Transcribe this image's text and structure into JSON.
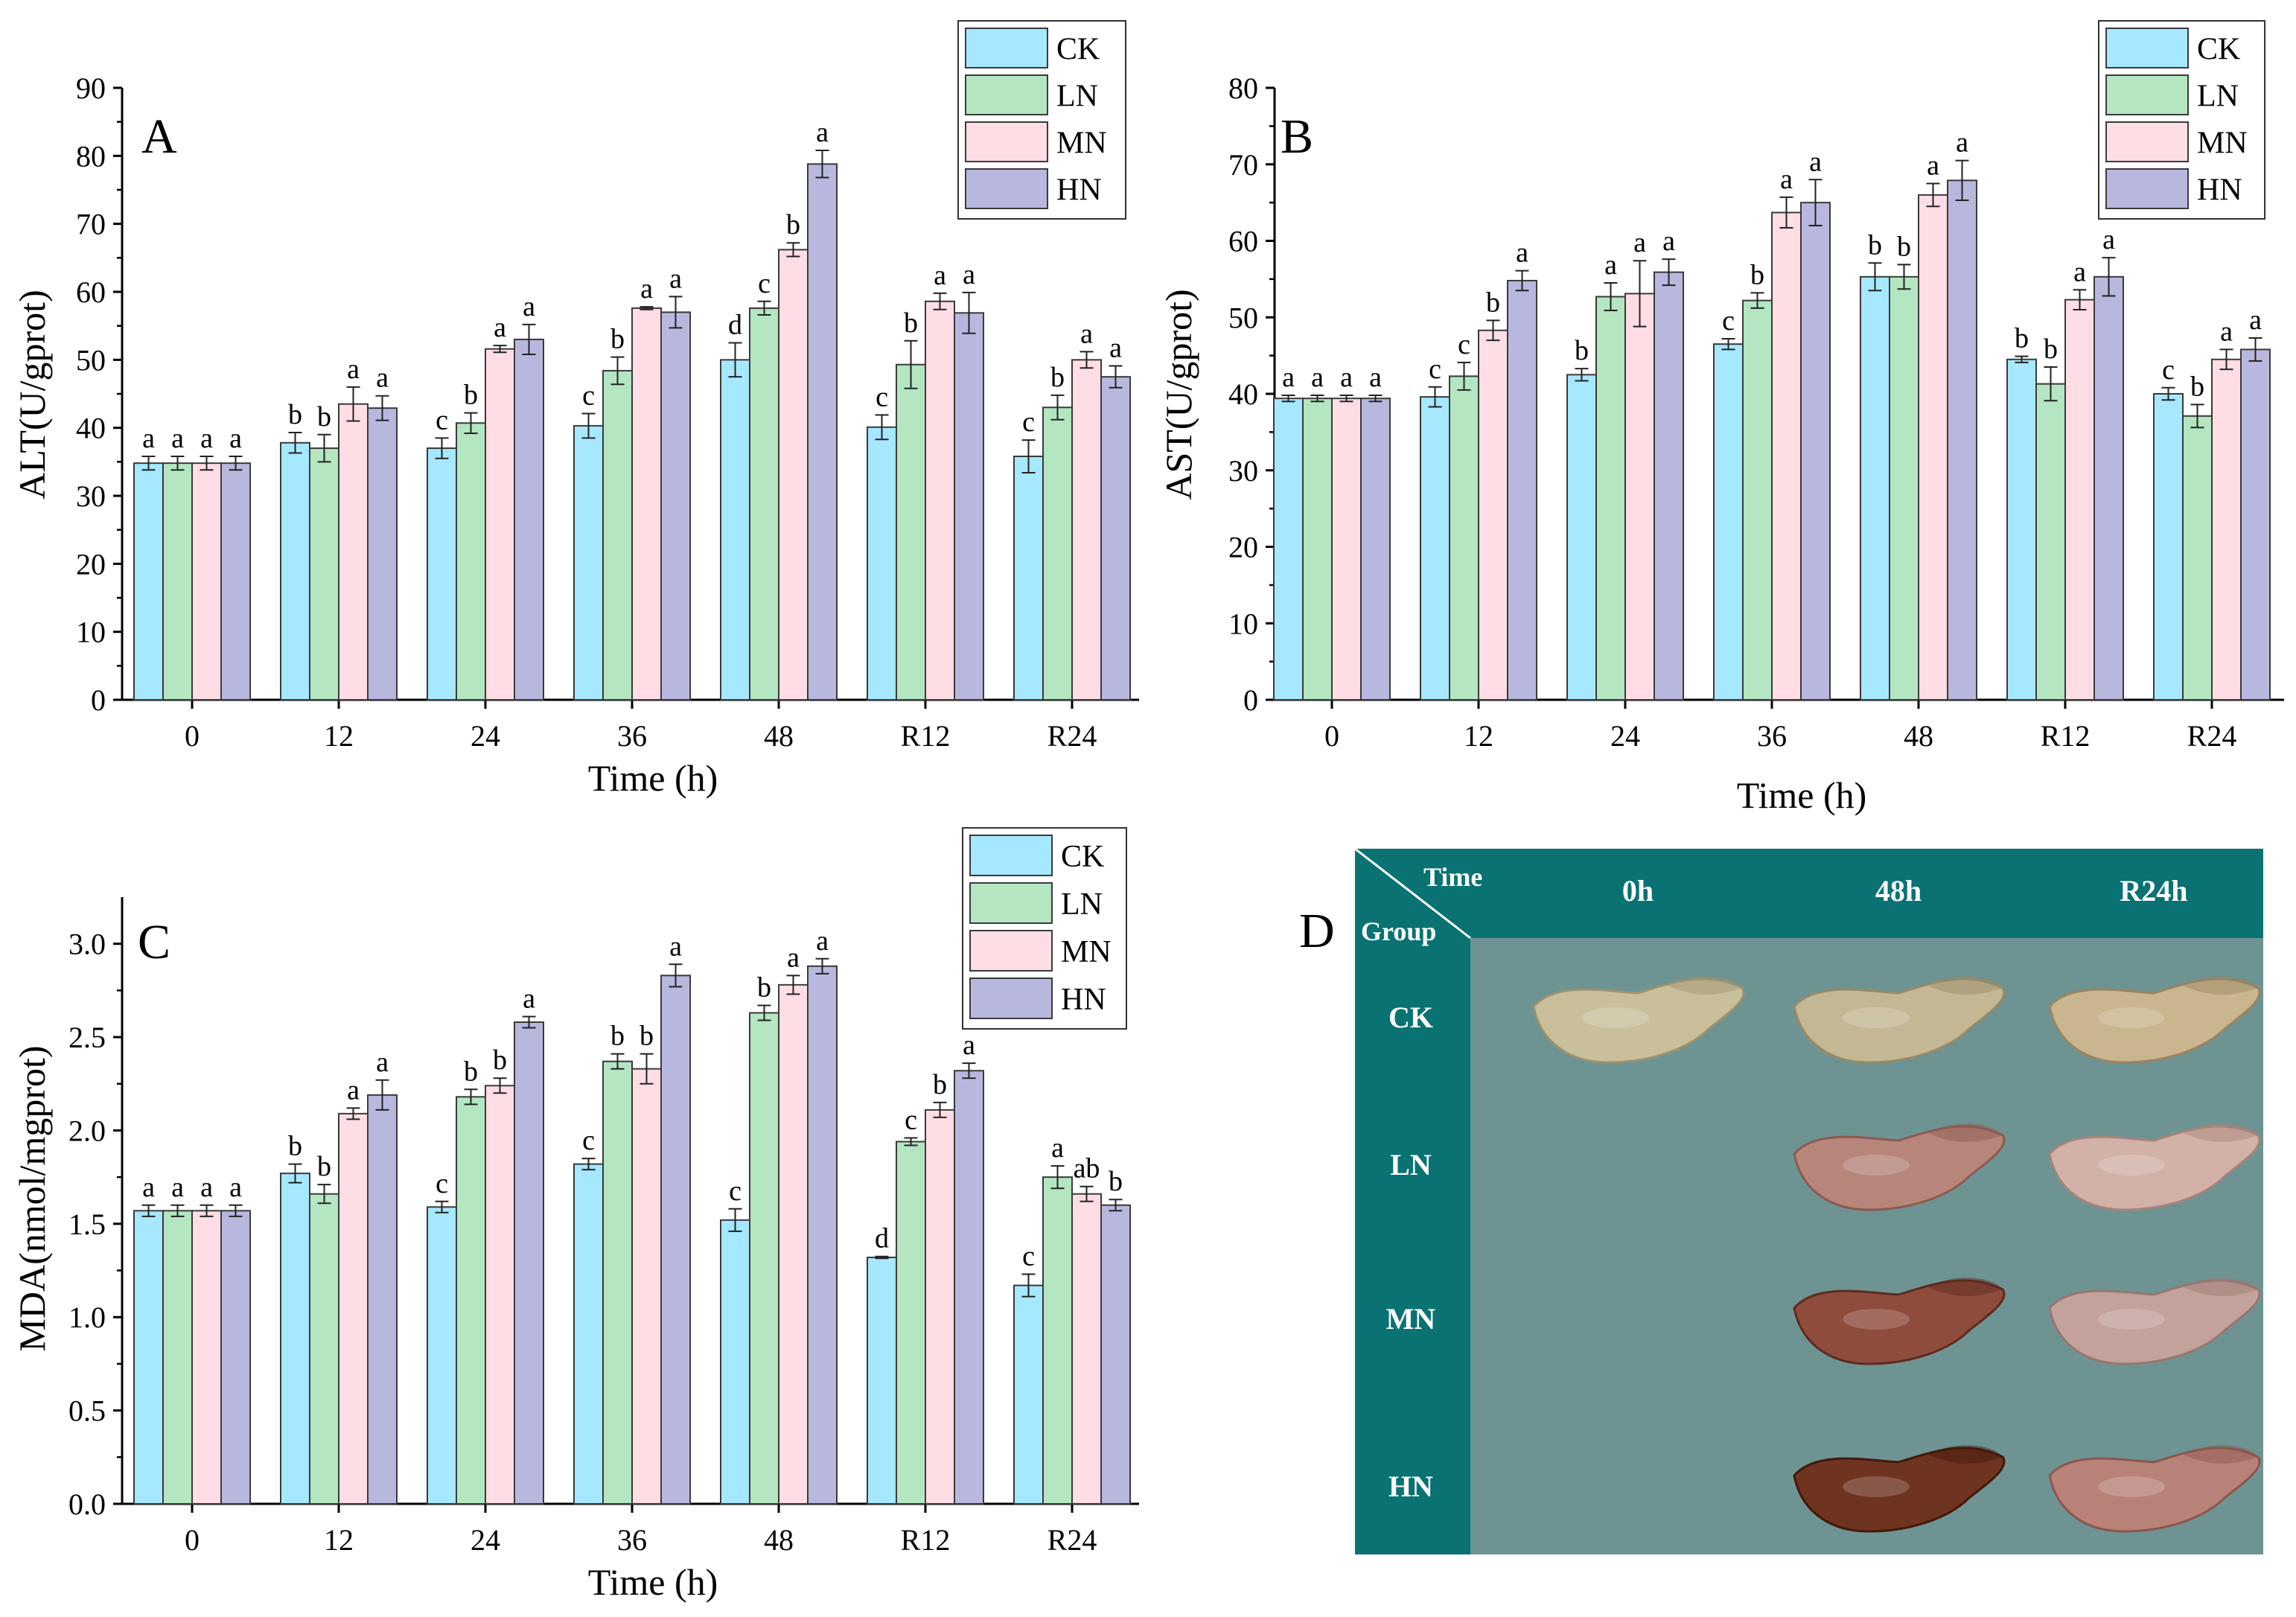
{
  "colors": {
    "CK": "#a6e8ff",
    "LN": "#b3e6c1",
    "MN": "#ffdde4",
    "HN": "#b8b8df",
    "teal": "#0a7272",
    "photo_bg": "#6e9393"
  },
  "legend": [
    "CK",
    "LN",
    "MN",
    "HN"
  ],
  "chart_data": [
    {
      "panel": "A",
      "type": "bar",
      "title": "A",
      "xlabel": "Time (h)",
      "ylabel": "ALT(U/gprot)",
      "categories": [
        "0",
        "12",
        "24",
        "36",
        "48",
        "R12",
        "R24"
      ],
      "ylim": [
        0,
        90
      ],
      "yticks": [
        "0",
        "10",
        "20",
        "30",
        "40",
        "50",
        "60",
        "70",
        "80",
        "90"
      ],
      "ystep": 10,
      "series": [
        {
          "name": "CK",
          "values": [
            34.8,
            37.8,
            37.0,
            40.3,
            50.0,
            40.1,
            35.8
          ],
          "errors": [
            1.0,
            1.5,
            1.5,
            1.8,
            2.5,
            1.8,
            2.4
          ],
          "labels": [
            "a",
            "b",
            "c",
            "c",
            "d",
            "c",
            "c"
          ]
        },
        {
          "name": "LN",
          "values": [
            34.8,
            37.0,
            40.7,
            48.4,
            57.6,
            49.3,
            43.0
          ],
          "errors": [
            1.0,
            2.0,
            1.5,
            2.0,
            1.0,
            3.5,
            1.8
          ],
          "labels": [
            "a",
            "b",
            "b",
            "b",
            "c",
            "b",
            "b"
          ]
        },
        {
          "name": "MN",
          "values": [
            34.8,
            43.5,
            51.6,
            57.6,
            66.2,
            58.6,
            50.0
          ],
          "errors": [
            1.0,
            2.5,
            0.5,
            0.2,
            1.0,
            1.2,
            1.2
          ],
          "labels": [
            "a",
            "a",
            "a",
            "a",
            "b",
            "a",
            "a"
          ]
        },
        {
          "name": "HN",
          "values": [
            34.8,
            42.9,
            53.0,
            57.0,
            78.8,
            56.9,
            47.5
          ],
          "errors": [
            1.0,
            1.8,
            2.2,
            2.3,
            2.0,
            3.0,
            1.6
          ],
          "labels": [
            "a",
            "a",
            "a",
            "a",
            "a",
            "a",
            "a"
          ]
        }
      ]
    },
    {
      "panel": "B",
      "type": "bar",
      "title": "B",
      "xlabel": "Time (h)",
      "ylabel": "AST(U/gprot)",
      "categories": [
        "0",
        "12",
        "24",
        "36",
        "48",
        "R12",
        "R24"
      ],
      "ylim": [
        0,
        80
      ],
      "yticks": [
        "0",
        "10",
        "20",
        "30",
        "40",
        "50",
        "60",
        "70",
        "80"
      ],
      "ystep": 10,
      "series": [
        {
          "name": "CK",
          "values": [
            39.4,
            39.6,
            42.5,
            46.5,
            55.3,
            44.5,
            40.0
          ],
          "errors": [
            0.4,
            1.3,
            0.8,
            0.7,
            1.8,
            0.4,
            0.8
          ],
          "labels": [
            "a",
            "c",
            "b",
            "c",
            "b",
            "b",
            "c"
          ]
        },
        {
          "name": "LN",
          "values": [
            39.4,
            42.3,
            52.7,
            52.2,
            55.3,
            41.3,
            37.1
          ],
          "errors": [
            0.4,
            1.8,
            1.8,
            1.0,
            1.6,
            2.2,
            1.5
          ],
          "labels": [
            "a",
            "c",
            "a",
            "b",
            "b",
            "b",
            "b"
          ]
        },
        {
          "name": "MN",
          "values": [
            39.4,
            48.3,
            53.1,
            63.7,
            66.0,
            52.3,
            44.5
          ],
          "errors": [
            0.4,
            1.3,
            4.3,
            2.0,
            1.5,
            1.3,
            1.3
          ],
          "labels": [
            "a",
            "b",
            "a",
            "a",
            "a",
            "a",
            "a"
          ]
        },
        {
          "name": "HN",
          "values": [
            39.4,
            54.8,
            55.9,
            65.0,
            67.9,
            55.3,
            45.8
          ],
          "errors": [
            0.4,
            1.3,
            1.7,
            3.0,
            2.6,
            2.5,
            1.5
          ],
          "labels": [
            "a",
            "a",
            "a",
            "a",
            "a",
            "a",
            "a"
          ]
        }
      ]
    },
    {
      "panel": "C",
      "type": "bar",
      "title": "C",
      "xlabel": "Time (h)",
      "ylabel": "MDA(nmol/mgprot)",
      "categories": [
        "0",
        "12",
        "24",
        "36",
        "48",
        "R12",
        "R24"
      ],
      "ylim": [
        0,
        3.25
      ],
      "yticks": [
        "0.0",
        "0.5",
        "1.0",
        "1.5",
        "2.0",
        "2.5",
        "3.0"
      ],
      "ystep": 0.5,
      "series": [
        {
          "name": "CK",
          "values": [
            1.57,
            1.77,
            1.59,
            1.82,
            1.52,
            1.32,
            1.17
          ],
          "errors": [
            0.03,
            0.05,
            0.03,
            0.03,
            0.06,
            0.005,
            0.06
          ],
          "labels": [
            "a",
            "b",
            "c",
            "c",
            "c",
            "d",
            "c"
          ]
        },
        {
          "name": "LN",
          "values": [
            1.57,
            1.66,
            2.18,
            2.37,
            2.63,
            1.94,
            1.75
          ],
          "errors": [
            0.03,
            0.05,
            0.04,
            0.04,
            0.04,
            0.02,
            0.06
          ],
          "labels": [
            "a",
            "b",
            "b",
            "b",
            "b",
            "c",
            "a"
          ]
        },
        {
          "name": "MN",
          "values": [
            1.57,
            2.09,
            2.24,
            2.33,
            2.78,
            2.11,
            1.66
          ],
          "errors": [
            0.03,
            0.03,
            0.04,
            0.08,
            0.05,
            0.04,
            0.04
          ],
          "labels": [
            "a",
            "a",
            "b",
            "b",
            "a",
            "b",
            "ab"
          ]
        },
        {
          "name": "HN",
          "values": [
            1.57,
            2.19,
            2.58,
            2.83,
            2.88,
            2.32,
            1.6
          ],
          "errors": [
            0.03,
            0.08,
            0.03,
            0.06,
            0.04,
            0.04,
            0.03
          ],
          "labels": [
            "a",
            "a",
            "a",
            "a",
            "a",
            "a",
            "b"
          ]
        }
      ]
    }
  ],
  "panel_d": {
    "label": "D",
    "time_header": "Time",
    "group_header": "Group",
    "columns": [
      "0h",
      "48h",
      "R24h"
    ],
    "rows": [
      "CK",
      "LN",
      "MN",
      "HN"
    ],
    "samples": [
      {
        "row": "CK",
        "col": "0h",
        "tone": "pale-yellow",
        "fill": "#c9c09b",
        "stroke": "#9e9270"
      },
      {
        "row": "CK",
        "col": "48h",
        "tone": "pale-yellow",
        "fill": "#c4b894",
        "stroke": "#978a66"
      },
      {
        "row": "CK",
        "col": "R24h",
        "tone": "pale-yellow",
        "fill": "#c9b58e",
        "stroke": "#9a8460"
      },
      {
        "row": "LN",
        "col": "48h",
        "tone": "pink-brown",
        "fill": "#b7857a",
        "stroke": "#8b5a50"
      },
      {
        "row": "LN",
        "col": "R24h",
        "tone": "pale-pink",
        "fill": "#d1b1a8",
        "stroke": "#a68479"
      },
      {
        "row": "MN",
        "col": "48h",
        "tone": "red-brown",
        "fill": "#8e4c3d",
        "stroke": "#5e2a1e"
      },
      {
        "row": "MN",
        "col": "R24h",
        "tone": "pale-pink",
        "fill": "#c4a29c",
        "stroke": "#977770"
      },
      {
        "row": "HN",
        "col": "48h",
        "tone": "dark-brown",
        "fill": "#6e3420",
        "stroke": "#43180a"
      },
      {
        "row": "HN",
        "col": "R24h",
        "tone": "pink",
        "fill": "#b98279",
        "stroke": "#8a564d"
      }
    ]
  }
}
